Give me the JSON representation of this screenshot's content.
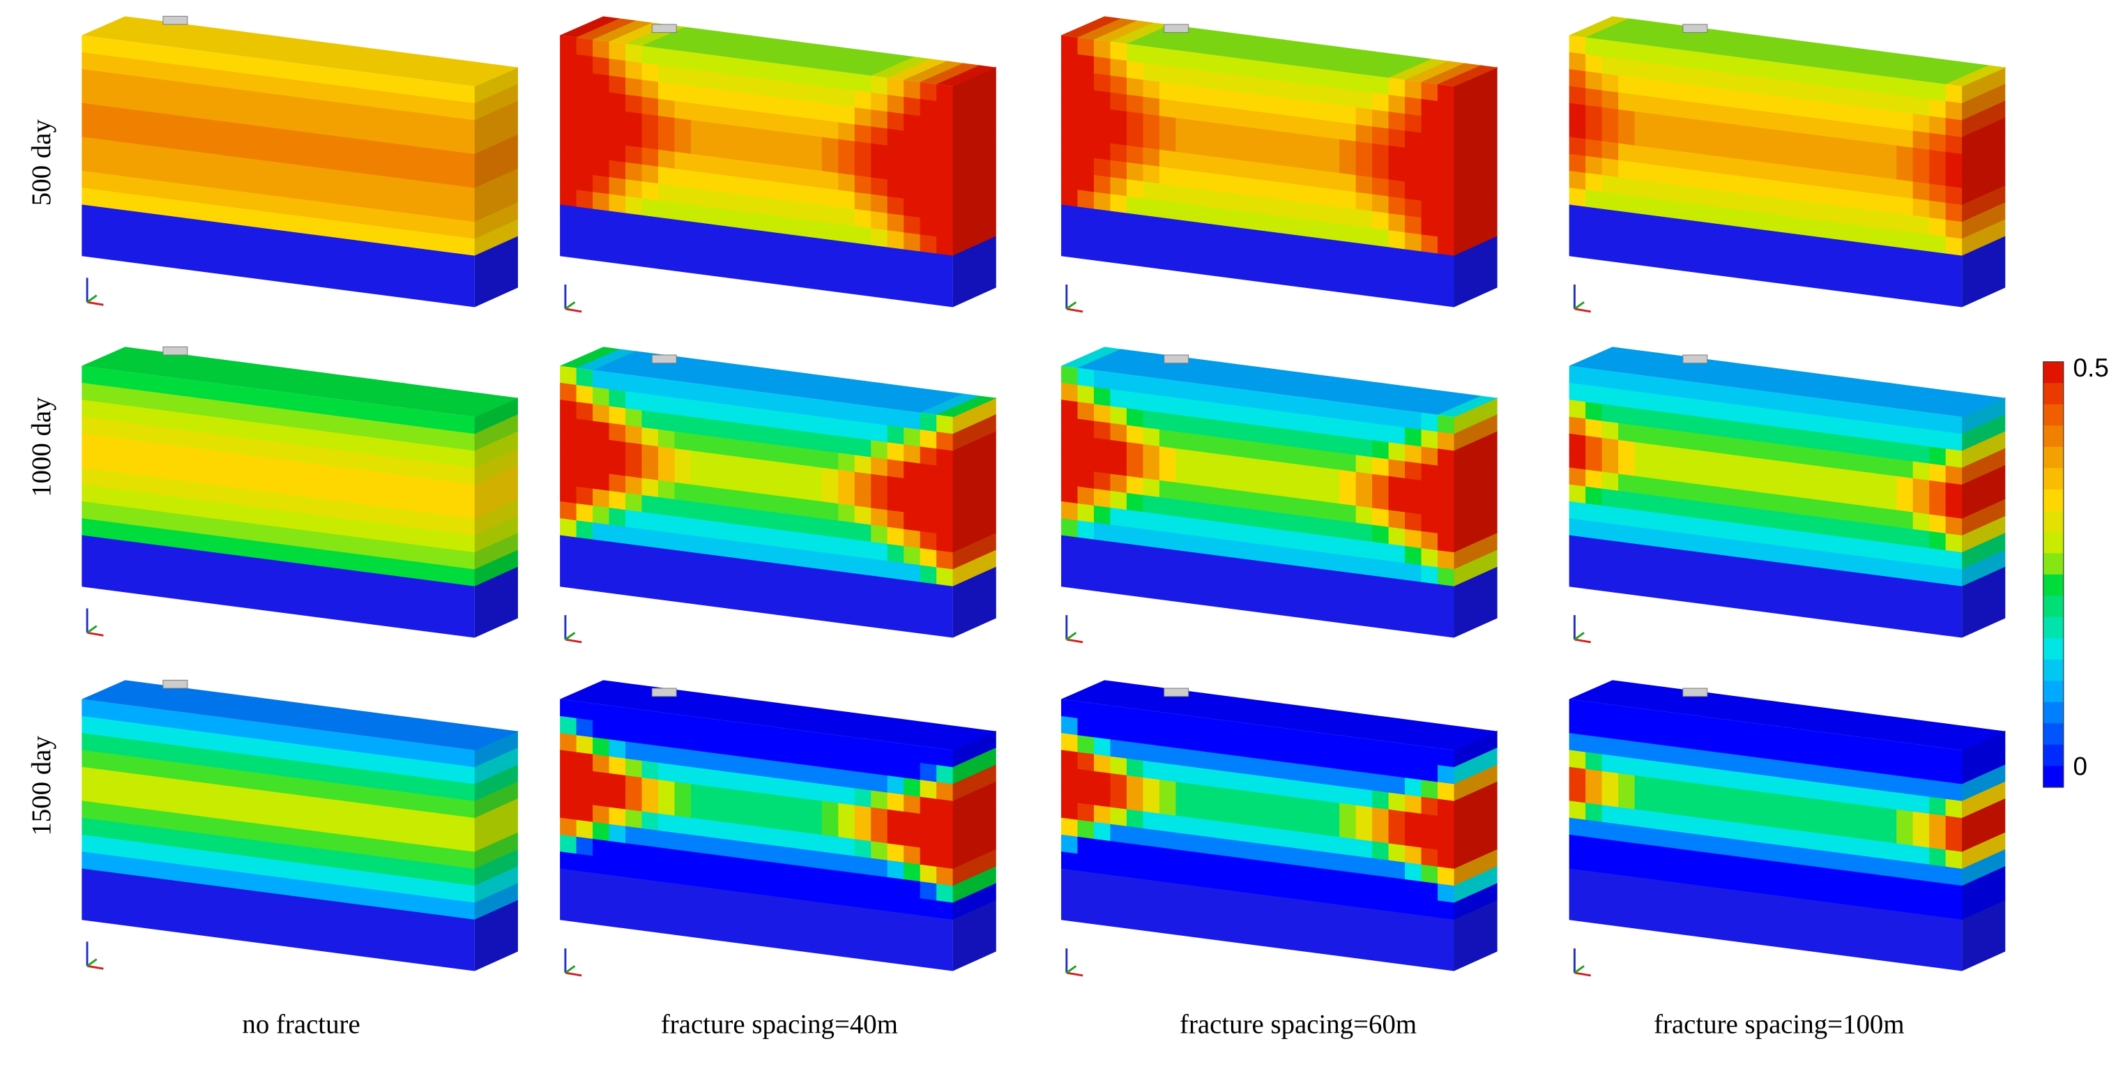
{
  "rows": [
    "500 day",
    "1000 day",
    "1500 day"
  ],
  "columns": [
    "no fracture",
    "fracture spacing=40m",
    "fracture spacing=60m",
    "fracture spacing=100m"
  ],
  "colorbar": {
    "max": 0.5,
    "min": 0
  }
}
